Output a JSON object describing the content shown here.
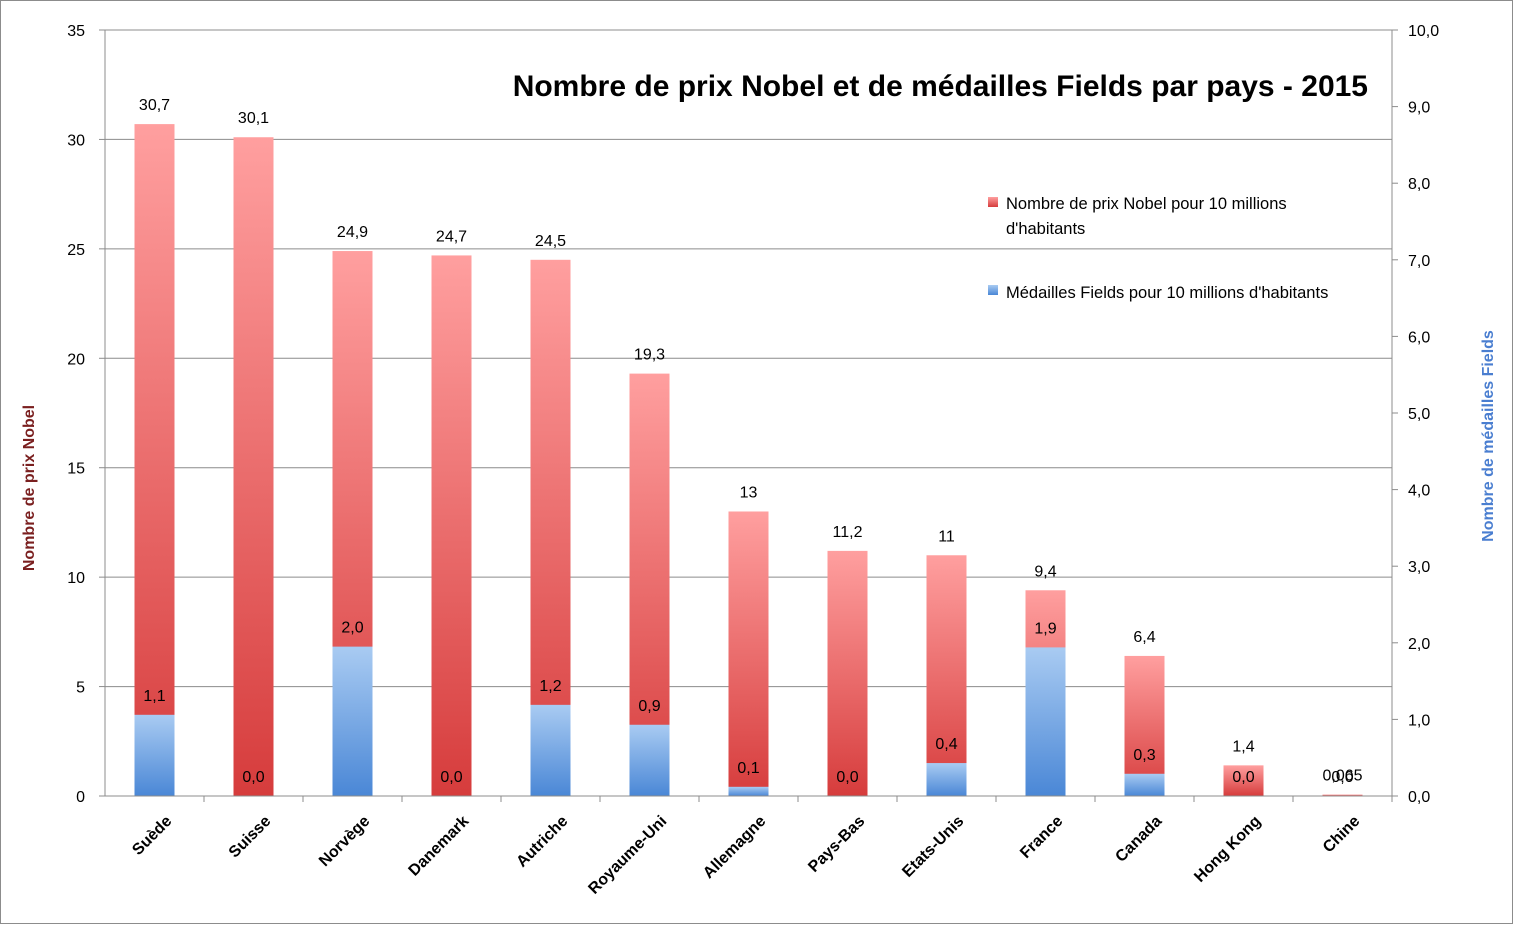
{
  "colors": {
    "nobel_top": "#ff9f9f",
    "nobel_bottom": "#d63c3c",
    "fields_top": "#a9cbf2",
    "fields_bottom": "#4a87d6",
    "left_axis_title": "#7a1f1f",
    "right_axis_title": "#4a7ed0",
    "gridline": "#8c8c8c",
    "frame": "#8c8c8c"
  },
  "chart_data": {
    "type": "bar",
    "title": "Nombre de prix Nobel et de médailles Fields par pays - 2015",
    "categories": [
      "Suède",
      "Suisse",
      "Norvège",
      "Danemark",
      "Autriche",
      "Royaume-Uni",
      "Allemagne",
      "Pays-Bas",
      "Etats-Unis",
      "France",
      "Canada",
      "Hong Kong",
      "Chine"
    ],
    "series": [
      {
        "name": "Nombre de prix Nobel pour 10 millions d'habitants",
        "axis": "left",
        "values": [
          30.7,
          30.1,
          24.9,
          24.7,
          24.5,
          19.3,
          13,
          11.2,
          11,
          9.4,
          6.4,
          1.4,
          0.065
        ],
        "labels": [
          "30,7",
          "30,1",
          "24,9",
          "24,7",
          "24,5",
          "19,3",
          "13",
          "11,2",
          "11",
          "9,4",
          "6,4",
          "1,4",
          "0,065"
        ]
      },
      {
        "name": "Médailles Fields pour 10 millions d'habitants",
        "axis": "right",
        "values": [
          1.06,
          0,
          1.95,
          0,
          1.19,
          0.93,
          0.12,
          0,
          0.43,
          1.94,
          0.29,
          0,
          0
        ],
        "labels": [
          "1,1",
          "0,0",
          "2,0",
          "0,0",
          "1,2",
          "0,9",
          "0,1",
          "0,0",
          "0,4",
          "1,9",
          "0,3",
          "0,0",
          "0,0"
        ]
      }
    ],
    "ylabel": "Nombre de prix Nobel",
    "y2label": "Nombre de médailles Fields",
    "ylim": [
      0,
      35
    ],
    "y2lim": [
      0,
      10
    ],
    "yticks": [
      "0",
      "5",
      "10",
      "15",
      "20",
      "25",
      "30",
      "35"
    ],
    "y2ticks": [
      "0,0",
      "1,0",
      "2,0",
      "3,0",
      "4,0",
      "5,0",
      "6,0",
      "7,0",
      "8,0",
      "9,0",
      "10,0"
    ],
    "grid": true,
    "legend_position": "right"
  }
}
